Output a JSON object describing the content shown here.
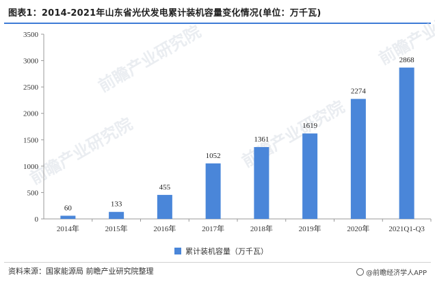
{
  "header": {
    "title": "图表1：2014-2021年山东省光伏发电累计装机容量变化情况(单位：万千瓦)"
  },
  "colors": {
    "bar": "#4a86d9",
    "accent_rule": "#3d7bd6",
    "axis": "#999999",
    "watermark": "#d8dee6"
  },
  "chart_data": {
    "type": "bar",
    "categories": [
      "2014年",
      "2015年",
      "2016年",
      "2017年",
      "2018年",
      "2019年",
      "2020年",
      "2021Q1-Q3"
    ],
    "values": [
      60,
      133,
      455,
      1052,
      1361,
      1619,
      2274,
      2868
    ],
    "ylim": [
      0,
      3500
    ],
    "yticks": [
      0,
      500,
      1000,
      1500,
      2000,
      2500,
      3000,
      3500
    ],
    "grid": false,
    "data_labels": true,
    "series": [
      {
        "name": "累计装机容量（万千瓦）",
        "values": [
          60,
          133,
          455,
          1052,
          1361,
          1619,
          2274,
          2868
        ]
      }
    ],
    "legend_position": "bottom"
  },
  "legend": {
    "label": "累计装机容量（万千瓦）"
  },
  "footer": {
    "source": "资料来源：国家能源局 前瞻产业研究院整理",
    "watermark": "@前瞻经济学人APP"
  },
  "watermarks": {
    "text": "前瞻产业研究院"
  }
}
